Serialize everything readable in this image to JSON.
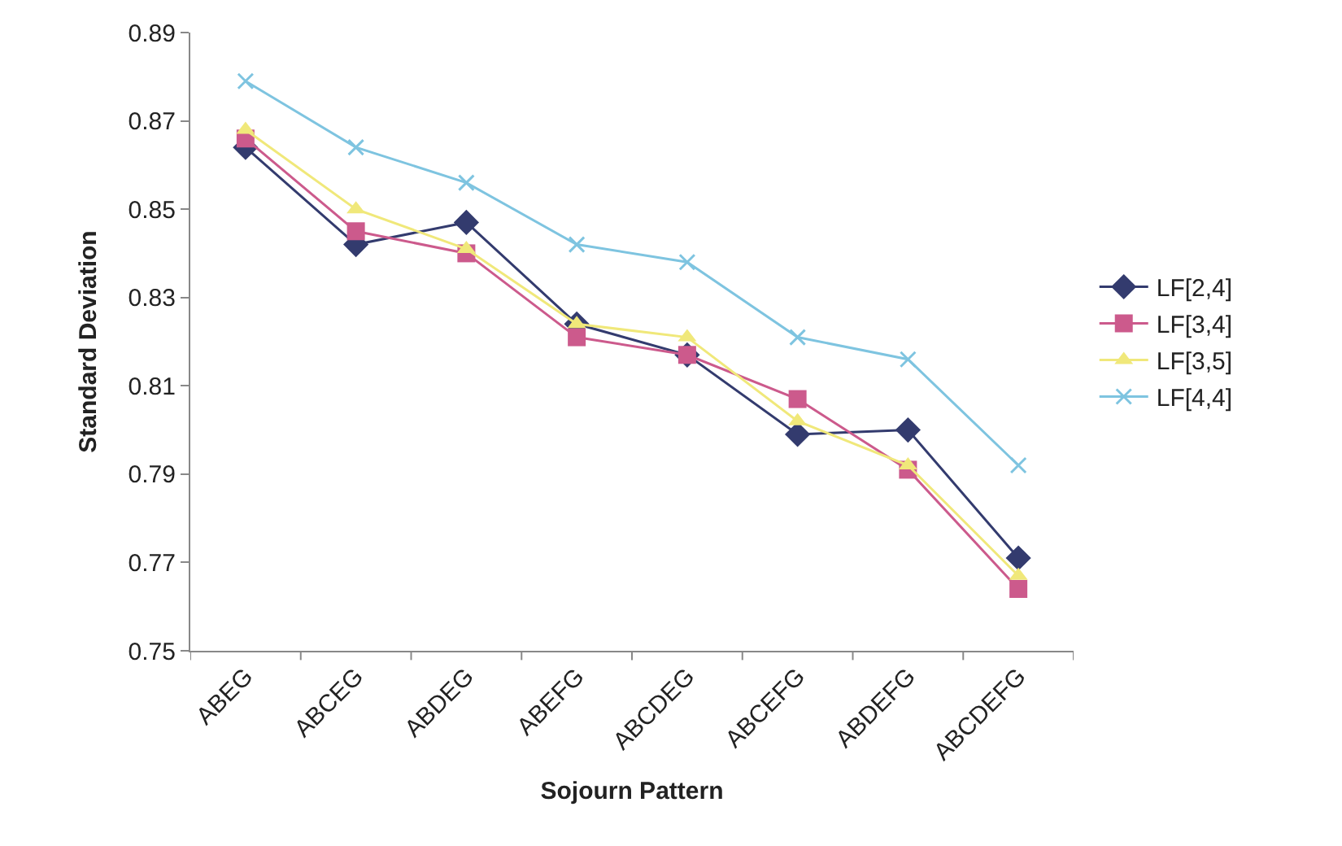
{
  "chart_data": {
    "type": "line",
    "xlabel": "Sojourn Pattern",
    "ylabel": "Standard Deviation",
    "categories": [
      "ABEG",
      "ABCEG",
      "ABDEG",
      "ABEFG",
      "ABCDEG",
      "ABCEFG",
      "ABDEFG",
      "ABCDEFG"
    ],
    "series": [
      {
        "name": "LF[2,4]",
        "color": "#333b6e",
        "marker": "diamond",
        "values": [
          0.864,
          0.842,
          0.847,
          0.824,
          0.817,
          0.799,
          0.8,
          0.771
        ]
      },
      {
        "name": "LF[3,4]",
        "color": "#cc5a8c",
        "marker": "square",
        "values": [
          0.866,
          0.845,
          0.84,
          0.821,
          0.817,
          0.807,
          0.791,
          0.764
        ]
      },
      {
        "name": "LF[3,5]",
        "color": "#f0e87a",
        "marker": "triangle",
        "values": [
          0.868,
          0.85,
          0.841,
          0.824,
          0.821,
          0.802,
          0.792,
          0.767
        ]
      },
      {
        "name": "LF[4,4]",
        "color": "#7ec4e0",
        "marker": "cross",
        "values": [
          0.879,
          0.864,
          0.856,
          0.842,
          0.838,
          0.821,
          0.816,
          0.792
        ]
      }
    ],
    "ylim": [
      0.75,
      0.89
    ],
    "yticks": [
      {
        "value": 0.75,
        "label": "0.75"
      },
      {
        "value": 0.77,
        "label": "0.77"
      },
      {
        "value": 0.79,
        "label": "0.79"
      },
      {
        "value": 0.81,
        "label": "0.81"
      },
      {
        "value": 0.83,
        "label": "0.83"
      },
      {
        "value": 0.85,
        "label": "0.85"
      },
      {
        "value": 0.87,
        "label": "0.87"
      },
      {
        "value": 0.89,
        "label": "0.89"
      }
    ],
    "legend": "right",
    "line_style": "solid"
  }
}
